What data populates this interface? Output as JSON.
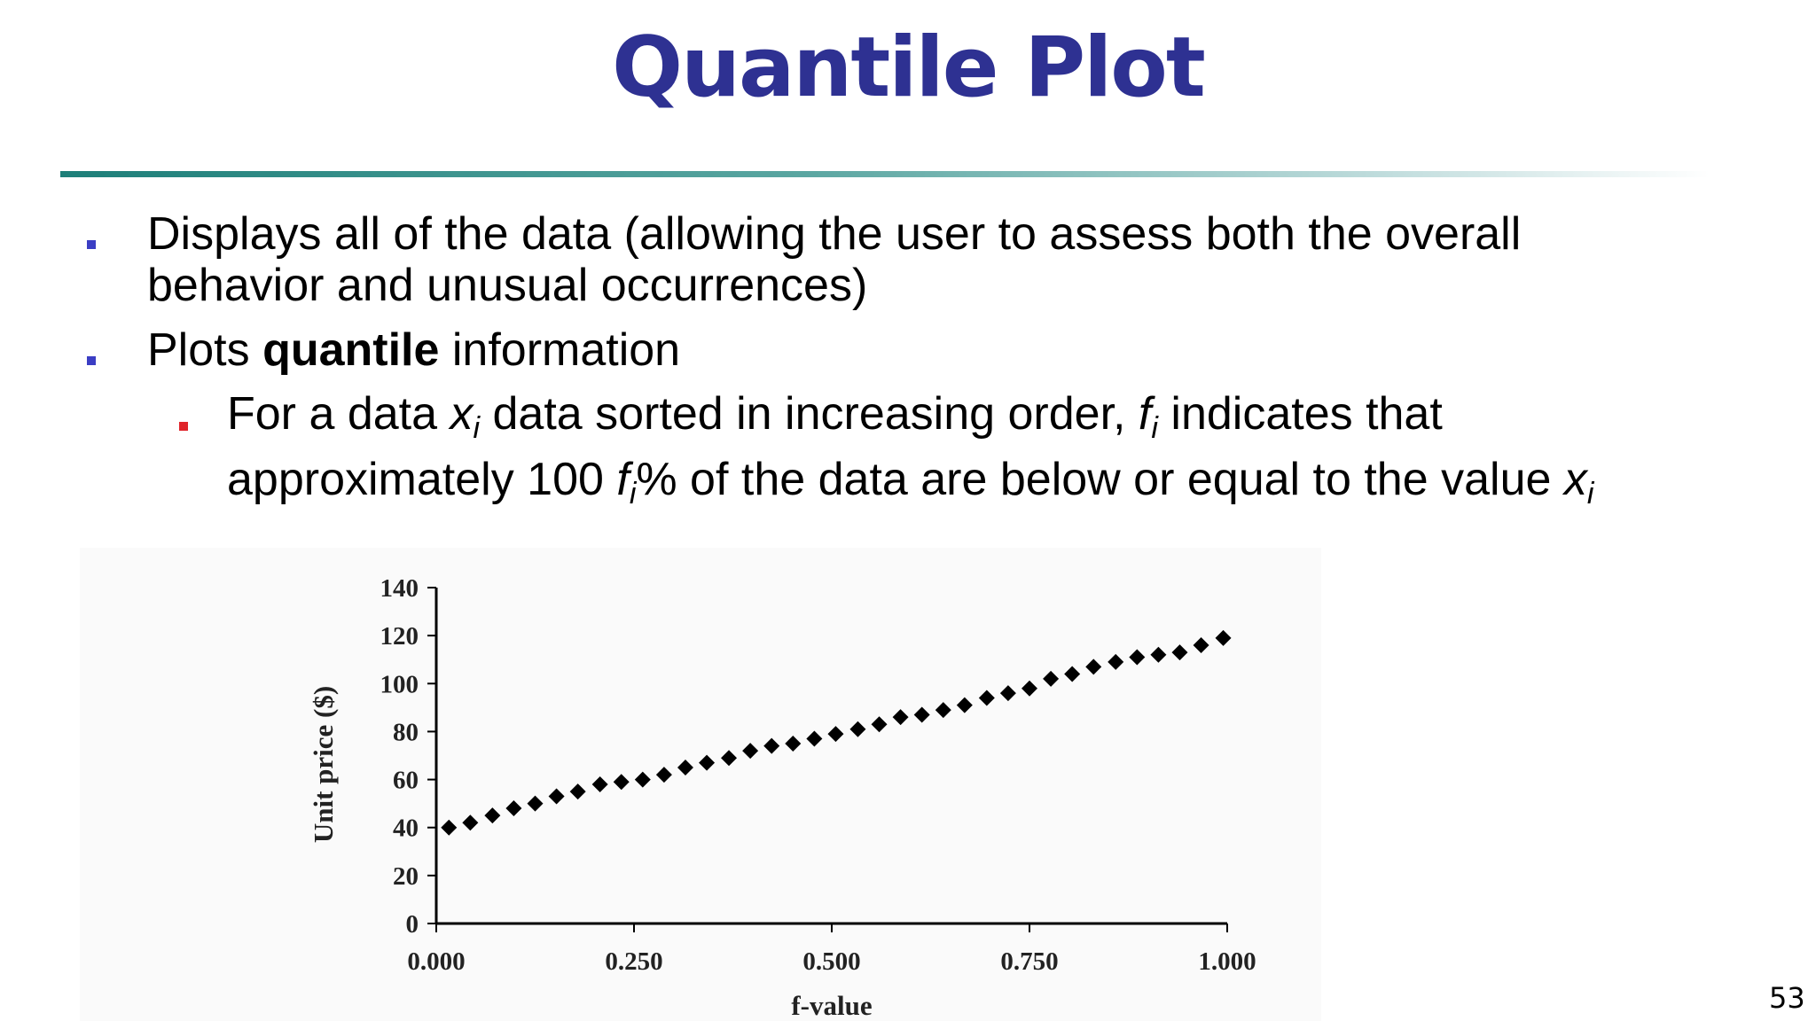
{
  "slide": {
    "title": "Quantile Plot",
    "page_number": "53",
    "bullets": {
      "b1": "Displays all of the data (allowing the user to assess both the overall behavior and unusual occurrences)",
      "b2_prefix": "Plots ",
      "b2_bold": "quantile",
      "b2_suffix": " information",
      "b3": {
        "t1": "For a data ",
        "x": "x",
        "i": "i",
        "t2": " data sorted in increasing order, ",
        "f": "f",
        "t3": " indicates that approximately 100 ",
        "t4": "% of the data are below or equal to the value "
      }
    }
  },
  "chart_data": {
    "type": "scatter",
    "title": "",
    "xlabel": "f-value",
    "ylabel": "Unit price ($)",
    "xlim": [
      0,
      1
    ],
    "ylim": [
      0,
      140
    ],
    "xticks": [
      "0.000",
      "0.250",
      "0.500",
      "0.750",
      "1.000"
    ],
    "yticks": [
      "0",
      "20",
      "40",
      "60",
      "80",
      "100",
      "120",
      "140"
    ],
    "marker": "diamond",
    "marker_color": "#000000",
    "grid": false,
    "series": [
      {
        "x": [
          0.016,
          0.043,
          0.071,
          0.098,
          0.125,
          0.152,
          0.179,
          0.207,
          0.234,
          0.261,
          0.288,
          0.315,
          0.342,
          0.37,
          0.397,
          0.424,
          0.451,
          0.478,
          0.505,
          0.533,
          0.56,
          0.587,
          0.614,
          0.641,
          0.668,
          0.696,
          0.723,
          0.75,
          0.777,
          0.804,
          0.831,
          0.859,
          0.886,
          0.913,
          0.94,
          0.967,
          0.995
        ],
        "y": [
          40,
          42,
          45,
          48,
          50,
          53,
          55,
          58,
          59,
          60,
          62,
          65,
          67,
          69,
          72,
          74,
          75,
          77,
          79,
          81,
          83,
          86,
          87,
          89,
          91,
          94,
          96,
          98,
          102,
          104,
          107,
          109,
          111,
          112,
          113,
          116,
          119
        ]
      }
    ]
  }
}
